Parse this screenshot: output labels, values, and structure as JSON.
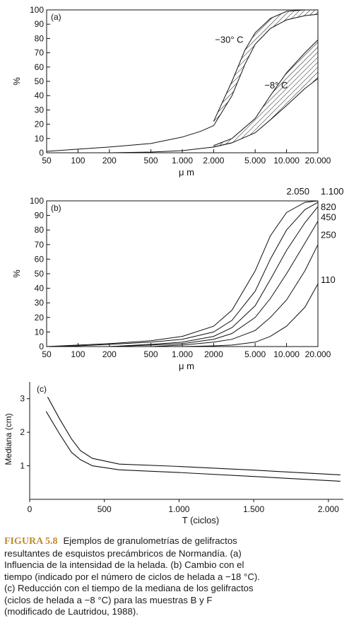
{
  "chart_data": [
    {
      "id": "a",
      "type": "line",
      "panel_label": "(a)",
      "xlabel": "μ m",
      "ylabel": "%",
      "x_scale": "log",
      "xlim": [
        50,
        20000
      ],
      "ylim": [
        0,
        100
      ],
      "xticks": [
        50,
        100,
        200,
        500,
        1000,
        2000,
        5000,
        10000,
        20000
      ],
      "xtick_labels": [
        "50",
        "100",
        "200",
        "500",
        "1.000",
        "2.000",
        "5.000",
        "10.000",
        "20.000"
      ],
      "yticks": [
        0,
        10,
        20,
        30,
        40,
        50,
        60,
        70,
        80,
        90,
        100
      ],
      "series": [
        {
          "name": "−30° C",
          "lower": [
            [
              50,
              1
            ],
            [
              100,
              2.5
            ],
            [
              200,
              4
            ],
            [
              500,
              6.5
            ],
            [
              1000,
              11
            ],
            [
              1500,
              15
            ],
            [
              2000,
              19
            ]
          ],
          "upper": [
            [
              50,
              1
            ],
            [
              100,
              2.5
            ],
            [
              200,
              4
            ],
            [
              500,
              6.5
            ],
            [
              1000,
              11
            ],
            [
              1500,
              15
            ],
            [
              2000,
              19
            ]
          ],
          "band_lower": [
            [
              2000,
              19
            ],
            [
              3000,
              40
            ],
            [
              4000,
              62
            ],
            [
              5000,
              76
            ],
            [
              7000,
              87
            ],
            [
              10000,
              93
            ],
            [
              15000,
              96
            ],
            [
              20000,
              97
            ]
          ],
          "band_upper": [
            [
              2000,
              22
            ],
            [
              3000,
              50
            ],
            [
              4000,
              72
            ],
            [
              5000,
              84
            ],
            [
              7000,
              94
            ],
            [
              10000,
              99
            ],
            [
              15000,
              100
            ],
            [
              20000,
              100
            ]
          ]
        },
        {
          "name": "−8° C",
          "lower": [
            [
              50,
              0
            ],
            [
              200,
              0
            ],
            [
              500,
              0.5
            ],
            [
              1000,
              1.5
            ],
            [
              2000,
              4
            ],
            [
              3000,
              7
            ]
          ],
          "upper": [
            [
              50,
              0
            ],
            [
              200,
              0
            ],
            [
              500,
              0.5
            ],
            [
              1000,
              1.5
            ],
            [
              2000,
              4
            ],
            [
              3000,
              7
            ]
          ],
          "band_lower": [
            [
              2000,
              4
            ],
            [
              3000,
              7
            ],
            [
              5000,
              14
            ],
            [
              7000,
              23
            ],
            [
              10000,
              33
            ],
            [
              15000,
              45
            ],
            [
              20000,
              52
            ]
          ],
          "band_upper": [
            [
              2000,
              5
            ],
            [
              3000,
              10
            ],
            [
              5000,
              24
            ],
            [
              7000,
              40
            ],
            [
              10000,
              56
            ],
            [
              15000,
              70
            ],
            [
              20000,
              79
            ]
          ]
        }
      ]
    },
    {
      "id": "b",
      "type": "line",
      "panel_label": "(b)",
      "xlabel": "μ m",
      "ylabel": "%",
      "x_scale": "log",
      "xlim": [
        50,
        20000
      ],
      "ylim": [
        0,
        100
      ],
      "xticks": [
        50,
        100,
        200,
        500,
        1000,
        2000,
        5000,
        10000,
        20000
      ],
      "xtick_labels": [
        "50",
        "100",
        "200",
        "500",
        "1.000",
        "2000",
        "5.000",
        "10.000",
        "20.000"
      ],
      "yticks": [
        0,
        10,
        20,
        30,
        40,
        50,
        60,
        70,
        80,
        90,
        100
      ],
      "series": [
        {
          "name": "2.050",
          "points": [
            [
              50,
              0
            ],
            [
              100,
              1
            ],
            [
              200,
              2
            ],
            [
              500,
              4
            ],
            [
              1000,
              7
            ],
            [
              2000,
              14
            ],
            [
              3000,
              25
            ],
            [
              5000,
              52
            ],
            [
              7000,
              76
            ],
            [
              10000,
              92
            ],
            [
              15000,
              99
            ],
            [
              20000,
              100
            ]
          ]
        },
        {
          "name": "1.100",
          "points": [
            [
              50,
              0
            ],
            [
              100,
              0.5
            ],
            [
              200,
              1.5
            ],
            [
              500,
              3
            ],
            [
              1000,
              5
            ],
            [
              2000,
              10
            ],
            [
              3000,
              18
            ],
            [
              5000,
              38
            ],
            [
              7000,
              60
            ],
            [
              10000,
              80
            ],
            [
              15000,
              94
            ],
            [
              20000,
              99
            ]
          ]
        },
        {
          "name": "820",
          "points": [
            [
              200,
              0
            ],
            [
              500,
              1.5
            ],
            [
              1000,
              3
            ],
            [
              2000,
              7
            ],
            [
              3000,
              13
            ],
            [
              5000,
              28
            ],
            [
              7000,
              46
            ],
            [
              10000,
              66
            ],
            [
              15000,
              85
            ],
            [
              20000,
              96
            ]
          ]
        },
        {
          "name": "450",
          "points": [
            [
              200,
              0
            ],
            [
              500,
              1
            ],
            [
              1000,
              2
            ],
            [
              2000,
              5
            ],
            [
              3000,
              9
            ],
            [
              5000,
              20
            ],
            [
              7000,
              33
            ],
            [
              10000,
              50
            ],
            [
              15000,
              71
            ],
            [
              20000,
              86
            ]
          ]
        },
        {
          "name": "250",
          "points": [
            [
              500,
              0
            ],
            [
              1000,
              1
            ],
            [
              2000,
              3
            ],
            [
              3000,
              5
            ],
            [
              5000,
              11
            ],
            [
              7000,
              20
            ],
            [
              10000,
              32
            ],
            [
              15000,
              52
            ],
            [
              20000,
              70
            ]
          ]
        },
        {
          "name": "110",
          "points": [
            [
              1000,
              0
            ],
            [
              2000,
              0.5
            ],
            [
              3000,
              1
            ],
            [
              5000,
              3
            ],
            [
              7000,
              7
            ],
            [
              10000,
              14
            ],
            [
              15000,
              27
            ],
            [
              20000,
              43
            ]
          ]
        }
      ],
      "label_values": {
        "2.050": 100,
        "1.100": 100,
        "820": 96,
        "450": 89,
        "250": 77,
        "110": 46
      }
    },
    {
      "id": "c",
      "type": "line",
      "panel_label": "(c)",
      "xlabel": "T (ciclos)",
      "ylabel": "Mediana (cm)",
      "xlim": [
        0,
        2100
      ],
      "ylim": [
        0,
        3.5
      ],
      "xticks": [
        0,
        500,
        1000,
        1500,
        2000
      ],
      "xtick_labels": [
        "0",
        "500",
        "1.000",
        "1.500",
        "2.000"
      ],
      "yticks": [
        1,
        2,
        3
      ],
      "ytick_labels": [
        "1",
        "2",
        "3"
      ],
      "series": [
        {
          "points": [
            [
              120,
              3.05
            ],
            [
              200,
              2.4
            ],
            [
              280,
              1.8
            ],
            [
              340,
              1.45
            ],
            [
              420,
              1.22
            ],
            [
              600,
              1.05
            ],
            [
              1000,
              0.98
            ],
            [
              1500,
              0.87
            ],
            [
              2080,
              0.73
            ]
          ]
        },
        {
          "points": [
            [
              110,
              2.62
            ],
            [
              200,
              1.95
            ],
            [
              280,
              1.4
            ],
            [
              340,
              1.18
            ],
            [
              420,
              1.0
            ],
            [
              600,
              0.88
            ],
            [
              1000,
              0.8
            ],
            [
              1500,
              0.68
            ],
            [
              2080,
              0.54
            ]
          ]
        }
      ]
    }
  ],
  "caption": {
    "figure": "FIGURA 5.8",
    "lines": [
      "Ejemplos de granulometrías de gelifractos",
      "resultantes de esquistos precámbricos de Normandía. (a)",
      "Influencia de la intensidad de la helada. (b) Cambio con el",
      "tiempo (indicado por el número de ciclos de helada a −18 °C).",
      "(c) Reducción con el tiempo de la mediana de los gelifractos",
      "(ciclos de helada a −8 °C) para las muestras B y F",
      "(modificado de Lautridou, 1988)."
    ]
  }
}
